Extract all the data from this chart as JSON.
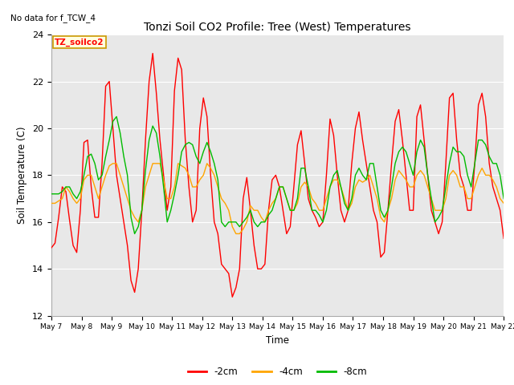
{
  "title": "Tonzi Soil CO2 Profile: Tree (West) Temperatures",
  "subtitle": "No data for f_TCW_4",
  "ylabel": "Soil Temperature (C)",
  "xlabel": "Time",
  "legend_label": "TZ_soilco2",
  "ylim": [
    12,
    24
  ],
  "yticks": [
    12,
    14,
    16,
    18,
    20,
    22,
    24
  ],
  "series_labels": [
    "-2cm",
    "-4cm",
    "-8cm"
  ],
  "series_colors": [
    "#ff0000",
    "#ffa500",
    "#00bb00"
  ],
  "background_color": "#e8e8e8",
  "fig_bg_color": "#ffffff",
  "n_days": 16,
  "start_day": 7,
  "end_day": 22,
  "red_2cm": [
    14.9,
    15.1,
    16.2,
    17.5,
    17.3,
    16.1,
    15.0,
    14.7,
    16.5,
    19.4,
    19.5,
    17.5,
    16.2,
    16.2,
    18.5,
    21.8,
    22.0,
    20.0,
    18.0,
    17.0,
    16.0,
    15.0,
    13.5,
    13.0,
    14.0,
    16.5,
    19.5,
    22.0,
    23.2,
    21.5,
    19.5,
    18.0,
    16.5,
    17.5,
    21.6,
    23.0,
    22.5,
    19.5,
    17.5,
    16.0,
    16.5,
    20.0,
    21.3,
    20.5,
    18.0,
    16.0,
    15.5,
    14.2,
    14.0,
    13.8,
    12.8,
    13.2,
    14.0,
    17.0,
    17.9,
    16.5,
    15.0,
    14.0,
    14.0,
    14.2,
    16.5,
    17.8,
    18.0,
    17.5,
    16.5,
    15.5,
    15.8,
    17.5,
    19.3,
    19.9,
    18.5,
    17.0,
    16.5,
    16.2,
    15.8,
    16.0,
    18.0,
    20.4,
    19.7,
    18.0,
    16.5,
    16.0,
    16.5,
    18.5,
    20.0,
    20.7,
    19.5,
    18.5,
    17.5,
    16.5,
    16.0,
    14.5,
    14.7,
    16.5,
    18.5,
    20.3,
    20.8,
    19.5,
    18.0,
    16.5,
    16.5,
    20.5,
    21.0,
    19.5,
    18.0,
    16.5,
    16.0,
    15.5,
    16.0,
    18.5,
    21.3,
    21.5,
    19.5,
    18.0,
    17.5,
    16.5,
    16.5,
    18.5,
    21.0,
    21.5,
    20.5,
    18.5,
    17.5,
    17.0,
    16.5,
    15.3
  ],
  "orange_4cm": [
    16.8,
    16.8,
    16.9,
    17.0,
    17.5,
    17.3,
    17.0,
    16.8,
    17.0,
    17.8,
    18.0,
    18.0,
    17.5,
    17.0,
    17.5,
    18.0,
    18.4,
    18.5,
    18.5,
    18.0,
    17.5,
    17.0,
    16.5,
    16.2,
    16.0,
    16.5,
    17.5,
    18.0,
    18.5,
    18.5,
    18.5,
    17.8,
    17.0,
    17.0,
    17.5,
    18.5,
    18.4,
    18.3,
    18.0,
    17.5,
    17.5,
    17.8,
    18.0,
    18.5,
    18.3,
    18.0,
    17.5,
    17.0,
    16.8,
    16.5,
    15.8,
    15.5,
    15.5,
    15.7,
    16.0,
    16.7,
    16.5,
    16.5,
    16.2,
    16.0,
    16.5,
    16.8,
    17.0,
    17.5,
    17.5,
    17.0,
    16.5,
    16.5,
    16.8,
    17.5,
    17.7,
    17.5,
    17.0,
    16.8,
    16.5,
    16.5,
    17.0,
    17.5,
    17.8,
    17.8,
    17.5,
    17.0,
    16.5,
    16.8,
    17.5,
    17.8,
    17.7,
    17.8,
    18.0,
    17.5,
    17.0,
    16.2,
    16.0,
    16.5,
    17.0,
    17.8,
    18.2,
    18.0,
    17.8,
    17.5,
    17.5,
    18.0,
    18.2,
    18.0,
    17.5,
    17.0,
    16.5,
    16.5,
    16.5,
    17.0,
    18.0,
    18.2,
    18.0,
    17.5,
    17.5,
    17.0,
    17.0,
    17.5,
    18.0,
    18.3,
    18.0,
    18.0,
    17.8,
    17.5,
    17.0,
    16.8
  ],
  "green_8cm": [
    17.2,
    17.2,
    17.2,
    17.3,
    17.5,
    17.5,
    17.2,
    17.0,
    17.3,
    18.0,
    18.8,
    18.9,
    18.5,
    17.8,
    18.0,
    18.8,
    19.5,
    20.3,
    20.5,
    19.8,
    18.8,
    18.0,
    16.2,
    15.5,
    15.8,
    16.5,
    18.2,
    19.5,
    20.1,
    19.8,
    18.8,
    17.5,
    16.0,
    16.5,
    17.2,
    18.0,
    19.0,
    19.3,
    19.4,
    19.3,
    18.8,
    18.5,
    19.0,
    19.4,
    19.0,
    18.5,
    17.8,
    16.0,
    15.8,
    16.0,
    16.0,
    16.0,
    15.8,
    16.0,
    16.2,
    16.5,
    16.0,
    15.8,
    16.0,
    16.0,
    16.3,
    16.5,
    17.0,
    17.5,
    17.5,
    17.0,
    16.5,
    16.5,
    17.0,
    18.3,
    18.3,
    17.5,
    16.5,
    16.5,
    16.3,
    16.0,
    16.5,
    17.5,
    18.0,
    18.2,
    17.5,
    16.8,
    16.5,
    17.0,
    18.0,
    18.3,
    18.0,
    17.8,
    18.5,
    18.5,
    17.5,
    16.5,
    16.2,
    16.5,
    17.5,
    18.5,
    19.0,
    19.2,
    19.0,
    18.5,
    18.0,
    19.0,
    19.5,
    19.2,
    18.0,
    17.0,
    16.0,
    16.2,
    16.5,
    17.5,
    18.5,
    19.2,
    19.0,
    19.0,
    18.8,
    18.0,
    17.5,
    18.5,
    19.5,
    19.5,
    19.3,
    18.8,
    18.5,
    18.5,
    18.0,
    17.0
  ]
}
